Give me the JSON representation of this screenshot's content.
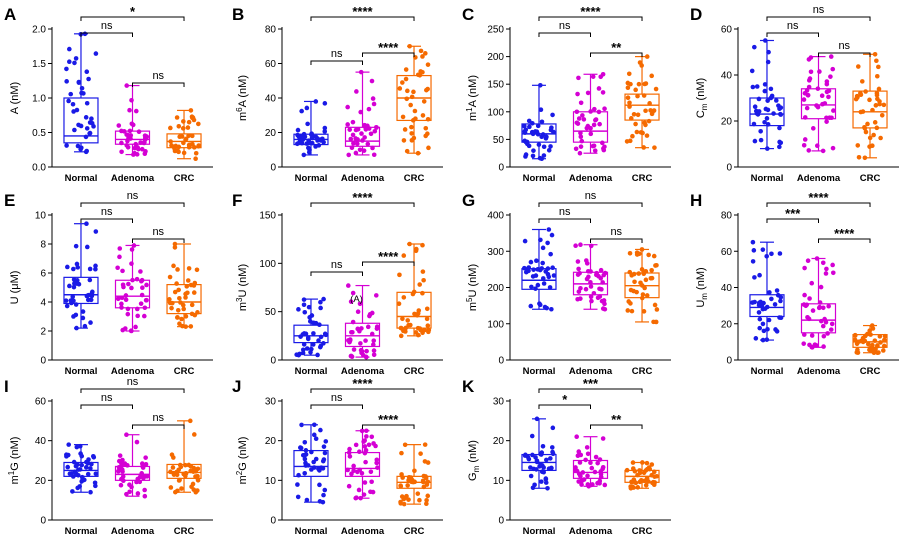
{
  "colors": {
    "Normal": "#1a1ae6",
    "Adenoma": "#d400d4",
    "CRC": "#f56a00"
  },
  "chart_data": [
    {
      "panel": "A",
      "type": "box",
      "ylabel": "A (nM)",
      "ylabel_html": [
        "A (nM)"
      ],
      "ylim": [
        0.0,
        2.0
      ],
      "yticks": [
        "0.0",
        "0.5",
        "1.0",
        "1.5",
        "2.0"
      ],
      "categories": [
        "Normal",
        "Adenoma",
        "CRC"
      ],
      "series": [
        {
          "name": "Normal",
          "min": 0.22,
          "q1": 0.35,
          "median": 0.45,
          "q3": 1.0,
          "max": 1.93
        },
        {
          "name": "Adenoma",
          "min": 0.18,
          "q1": 0.33,
          "median": 0.4,
          "q3": 0.52,
          "max": 1.18
        },
        {
          "name": "CRC",
          "min": 0.12,
          "q1": 0.28,
          "median": 0.37,
          "q3": 0.48,
          "max": 0.82
        }
      ],
      "comparisons": [
        {
          "from": "Normal",
          "to": "Adenoma",
          "label": "ns"
        },
        {
          "from": "Adenoma",
          "to": "CRC",
          "label": "ns"
        },
        {
          "from": "Normal",
          "to": "CRC",
          "label": "*"
        }
      ]
    },
    {
      "panel": "B",
      "type": "box",
      "ylabel": "m6A (nM)",
      "ylabel_parts": [
        "m",
        "6",
        "A (nM)"
      ],
      "ylim": [
        0,
        80
      ],
      "yticks": [
        "0",
        "20",
        "40",
        "60",
        "80"
      ],
      "categories": [
        "Normal",
        "Adenoma",
        "CRC"
      ],
      "series": [
        {
          "name": "Normal",
          "min": 7,
          "q1": 13,
          "median": 16,
          "q3": 19,
          "max": 38
        },
        {
          "name": "Adenoma",
          "min": 7,
          "q1": 12,
          "median": 15,
          "q3": 23,
          "max": 55
        },
        {
          "name": "CRC",
          "min": 8,
          "q1": 27,
          "median": 40,
          "q3": 53,
          "max": 70
        }
      ],
      "comparisons": [
        {
          "from": "Normal",
          "to": "Adenoma",
          "label": "ns"
        },
        {
          "from": "Adenoma",
          "to": "CRC",
          "label": "****"
        },
        {
          "from": "Normal",
          "to": "CRC",
          "label": "****"
        }
      ]
    },
    {
      "panel": "C",
      "type": "box",
      "ylabel": "m1A (nM)",
      "ylabel_parts": [
        "m",
        "1",
        "A (nM)"
      ],
      "ylim": [
        0,
        250
      ],
      "yticks": [
        "0",
        "50",
        "100",
        "150",
        "200",
        "250"
      ],
      "categories": [
        "Normal",
        "Adenoma",
        "CRC"
      ],
      "series": [
        {
          "name": "Normal",
          "min": 15,
          "q1": 45,
          "median": 60,
          "q3": 78,
          "max": 148
        },
        {
          "name": "Adenoma",
          "min": 25,
          "q1": 45,
          "median": 65,
          "q3": 100,
          "max": 168
        },
        {
          "name": "CRC",
          "min": 35,
          "q1": 85,
          "median": 112,
          "q3": 132,
          "max": 200
        }
      ],
      "comparisons": [
        {
          "from": "Normal",
          "to": "Adenoma",
          "label": "ns"
        },
        {
          "from": "Adenoma",
          "to": "CRC",
          "label": "**"
        },
        {
          "from": "Normal",
          "to": "CRC",
          "label": "****"
        }
      ]
    },
    {
      "panel": "D",
      "type": "box",
      "ylabel": "Cm (nM)",
      "ylabel_sub": [
        "C",
        "m",
        " (nM)"
      ],
      "ylim": [
        0,
        60
      ],
      "yticks": [
        "0",
        "20",
        "40",
        "60"
      ],
      "categories": [
        "Normal",
        "Adenoma",
        "CRC"
      ],
      "series": [
        {
          "name": "Normal",
          "min": 8,
          "q1": 18,
          "median": 23,
          "q3": 30,
          "max": 55
        },
        {
          "name": "Adenoma",
          "min": 7,
          "q1": 21,
          "median": 27,
          "q3": 34,
          "max": 48
        },
        {
          "name": "CRC",
          "min": 4,
          "q1": 17,
          "median": 24,
          "q3": 33,
          "max": 49
        }
      ],
      "comparisons": [
        {
          "from": "Normal",
          "to": "Adenoma",
          "label": "ns"
        },
        {
          "from": "Adenoma",
          "to": "CRC",
          "label": "ns"
        },
        {
          "from": "Normal",
          "to": "CRC",
          "label": "ns"
        }
      ]
    },
    {
      "panel": "E",
      "type": "box",
      "ylabel": "U (μM)",
      "ylim": [
        0,
        10
      ],
      "yticks": [
        "0",
        "2",
        "4",
        "6",
        "8",
        "10"
      ],
      "categories": [
        "Normal",
        "Adenoma",
        "CRC"
      ],
      "series": [
        {
          "name": "Normal",
          "min": 2.2,
          "q1": 3.9,
          "median": 4.5,
          "q3": 5.7,
          "max": 9.4
        },
        {
          "name": "Adenoma",
          "min": 2.0,
          "q1": 3.6,
          "median": 4.4,
          "q3": 5.5,
          "max": 7.9
        },
        {
          "name": "CRC",
          "min": 2.3,
          "q1": 3.2,
          "median": 4.0,
          "q3": 5.2,
          "max": 8.0
        }
      ],
      "comparisons": [
        {
          "from": "Normal",
          "to": "Adenoma",
          "label": "ns"
        },
        {
          "from": "Adenoma",
          "to": "CRC",
          "label": "ns"
        },
        {
          "from": "Normal",
          "to": "CRC",
          "label": "ns"
        }
      ]
    },
    {
      "panel": "F",
      "type": "box",
      "ylabel": "m3U (nM)",
      "ylabel_parts": [
        "m",
        "3",
        "U (nM)"
      ],
      "ylim": [
        0,
        150
      ],
      "yticks": [
        "0",
        "50",
        "100",
        "150"
      ],
      "categories": [
        "Normal",
        "Adenoma",
        "CRC"
      ],
      "series": [
        {
          "name": "Normal",
          "min": 5,
          "q1": 18,
          "median": 25,
          "q3": 36,
          "max": 63
        },
        {
          "name": "Adenoma",
          "min": 3,
          "q1": 14,
          "median": 25,
          "q3": 38,
          "max": 77
        },
        {
          "name": "CRC",
          "min": 25,
          "q1": 33,
          "median": 45,
          "q3": 70,
          "max": 120
        }
      ],
      "annotation": "(A)",
      "comparisons": [
        {
          "from": "Normal",
          "to": "Adenoma",
          "label": "ns"
        },
        {
          "from": "Adenoma",
          "to": "CRC",
          "label": "****"
        },
        {
          "from": "Normal",
          "to": "CRC",
          "label": "****"
        }
      ]
    },
    {
      "panel": "G",
      "type": "box",
      "ylabel": "m5U (nM)",
      "ylabel_parts": [
        "m",
        "5",
        "U (nM)"
      ],
      "ylim": [
        0,
        400
      ],
      "yticks": [
        "0",
        "100",
        "200",
        "300",
        "400"
      ],
      "categories": [
        "Normal",
        "Adenoma",
        "CRC"
      ],
      "series": [
        {
          "name": "Normal",
          "min": 140,
          "q1": 195,
          "median": 220,
          "q3": 252,
          "max": 360
        },
        {
          "name": "Adenoma",
          "min": 140,
          "q1": 180,
          "median": 210,
          "q3": 242,
          "max": 318
        },
        {
          "name": "CRC",
          "min": 105,
          "q1": 172,
          "median": 205,
          "q3": 240,
          "max": 305
        }
      ],
      "comparisons": [
        {
          "from": "Normal",
          "to": "Adenoma",
          "label": "ns"
        },
        {
          "from": "Adenoma",
          "to": "CRC",
          "label": "ns"
        },
        {
          "from": "Normal",
          "to": "CRC",
          "label": "ns"
        }
      ]
    },
    {
      "panel": "H",
      "type": "box",
      "ylabel": "Um (nM)",
      "ylabel_sub": [
        "U",
        "m",
        " (nM)"
      ],
      "ylim": [
        0,
        80
      ],
      "yticks": [
        "0",
        "20",
        "40",
        "60",
        "80"
      ],
      "categories": [
        "Normal",
        "Adenoma",
        "CRC"
      ],
      "series": [
        {
          "name": "Normal",
          "min": 11,
          "q1": 24,
          "median": 29,
          "q3": 36,
          "max": 65
        },
        {
          "name": "Adenoma",
          "min": 7,
          "q1": 15,
          "median": 22,
          "q3": 31,
          "max": 56
        },
        {
          "name": "CRC",
          "min": 4,
          "q1": 7,
          "median": 10,
          "q3": 14,
          "max": 19
        }
      ],
      "comparisons": [
        {
          "from": "Normal",
          "to": "Adenoma",
          "label": "***"
        },
        {
          "from": "Adenoma",
          "to": "CRC",
          "label": "****"
        },
        {
          "from": "Normal",
          "to": "CRC",
          "label": "****"
        }
      ]
    },
    {
      "panel": "I",
      "type": "box",
      "ylabel": "m1G (nM)",
      "ylabel_parts": [
        "m",
        "1",
        "G (nM)"
      ],
      "ylim": [
        0,
        60
      ],
      "yticks": [
        "0",
        "20",
        "40",
        "60"
      ],
      "categories": [
        "Normal",
        "Adenoma",
        "CRC"
      ],
      "series": [
        {
          "name": "Normal",
          "min": 14,
          "q1": 22,
          "median": 25,
          "q3": 29,
          "max": 38
        },
        {
          "name": "Adenoma",
          "min": 12,
          "q1": 20,
          "median": 23,
          "q3": 27,
          "max": 43
        },
        {
          "name": "CRC",
          "min": 14,
          "q1": 21,
          "median": 24,
          "q3": 28,
          "max": 50
        }
      ],
      "comparisons": [
        {
          "from": "Normal",
          "to": "Adenoma",
          "label": "ns"
        },
        {
          "from": "Adenoma",
          "to": "CRC",
          "label": "ns"
        },
        {
          "from": "Normal",
          "to": "CRC",
          "label": "ns"
        }
      ]
    },
    {
      "panel": "J",
      "type": "box",
      "ylabel": "m2G (nM)",
      "ylabel_parts": [
        "m",
        "2",
        "G (nM)"
      ],
      "ylim": [
        0,
        30
      ],
      "yticks": [
        "0",
        "10",
        "20",
        "30"
      ],
      "categories": [
        "Normal",
        "Adenoma",
        "CRC"
      ],
      "series": [
        {
          "name": "Normal",
          "min": 4.5,
          "q1": 11,
          "median": 13.5,
          "q3": 17.5,
          "max": 24
        },
        {
          "name": "Adenoma",
          "min": 5.5,
          "q1": 11,
          "median": 13,
          "q3": 17,
          "max": 22.5
        },
        {
          "name": "CRC",
          "min": 4,
          "q1": 8,
          "median": 9.5,
          "q3": 11,
          "max": 19
        }
      ],
      "comparisons": [
        {
          "from": "Normal",
          "to": "Adenoma",
          "label": "ns"
        },
        {
          "from": "Adenoma",
          "to": "CRC",
          "label": "****"
        },
        {
          "from": "Normal",
          "to": "CRC",
          "label": "****"
        }
      ]
    },
    {
      "panel": "K",
      "type": "box",
      "ylabel": "Gm (nM)",
      "ylabel_sub": [
        "G",
        "m",
        " (nM)"
      ],
      "ylim": [
        0,
        30
      ],
      "yticks": [
        "0",
        "10",
        "20",
        "30"
      ],
      "categories": [
        "Normal",
        "Adenoma",
        "CRC"
      ],
      "series": [
        {
          "name": "Normal",
          "min": 8,
          "q1": 12.5,
          "median": 14.5,
          "q3": 16.5,
          "max": 25.5
        },
        {
          "name": "Adenoma",
          "min": 8.5,
          "q1": 10.5,
          "median": 12,
          "q3": 15,
          "max": 21
        },
        {
          "name": "CRC",
          "min": 8,
          "q1": 9.5,
          "median": 11,
          "q3": 12.5,
          "max": 14.5
        }
      ],
      "comparisons": [
        {
          "from": "Normal",
          "to": "Adenoma",
          "label": "*"
        },
        {
          "from": "Adenoma",
          "to": "CRC",
          "label": "**"
        },
        {
          "from": "Normal",
          "to": "CRC",
          "label": "***"
        }
      ]
    }
  ]
}
